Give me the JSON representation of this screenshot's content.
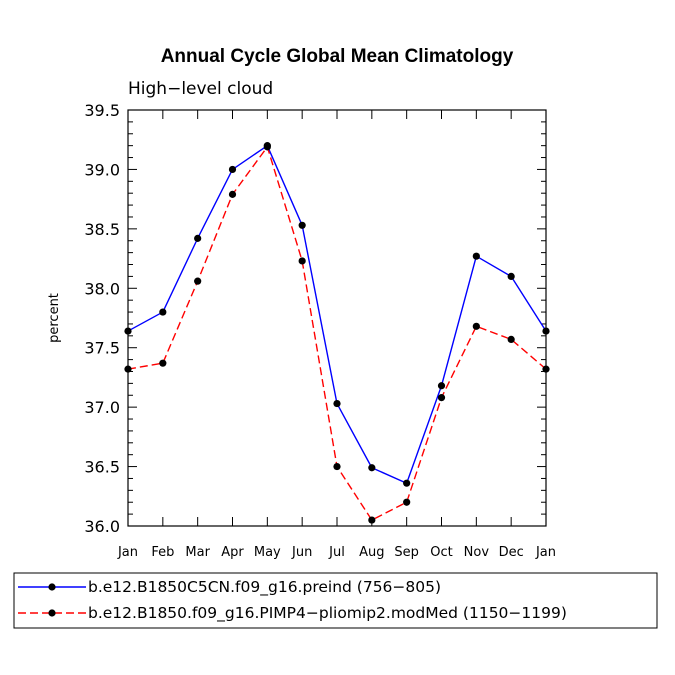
{
  "chart_data": {
    "type": "line",
    "title": "Annual Cycle Global Mean Climatology",
    "subtitle": "High−level cloud",
    "xlabel": "",
    "ylabel": "percent",
    "categories": [
      "Jan",
      "Feb",
      "Mar",
      "Apr",
      "May",
      "Jun",
      "Jul",
      "Aug",
      "Sep",
      "Oct",
      "Nov",
      "Dec",
      "Jan"
    ],
    "ylim": [
      36.0,
      39.5
    ],
    "yticks": [
      "36.0",
      "36.5",
      "37.0",
      "37.5",
      "38.0",
      "38.5",
      "39.0",
      "39.5"
    ],
    "grid": false,
    "legend_position": "bottom-left",
    "series": [
      {
        "name": "b.e12.B1850C5CN.f09_g16.preind (756−805)",
        "color": "#0000ff",
        "dash": "solid",
        "values": [
          37.64,
          37.8,
          38.42,
          39.0,
          39.2,
          38.53,
          37.03,
          36.49,
          36.36,
          37.18,
          38.27,
          38.1,
          37.64
        ]
      },
      {
        "name": "b.e12.B1850.f09_g16.PIMP4−pliomip2.modMed (1150−1199)",
        "color": "#ff0000",
        "dash": "dashed",
        "values": [
          37.32,
          37.37,
          38.06,
          38.79,
          39.19,
          38.23,
          36.5,
          36.05,
          36.2,
          37.08,
          37.68,
          37.57,
          37.32
        ]
      }
    ]
  }
}
